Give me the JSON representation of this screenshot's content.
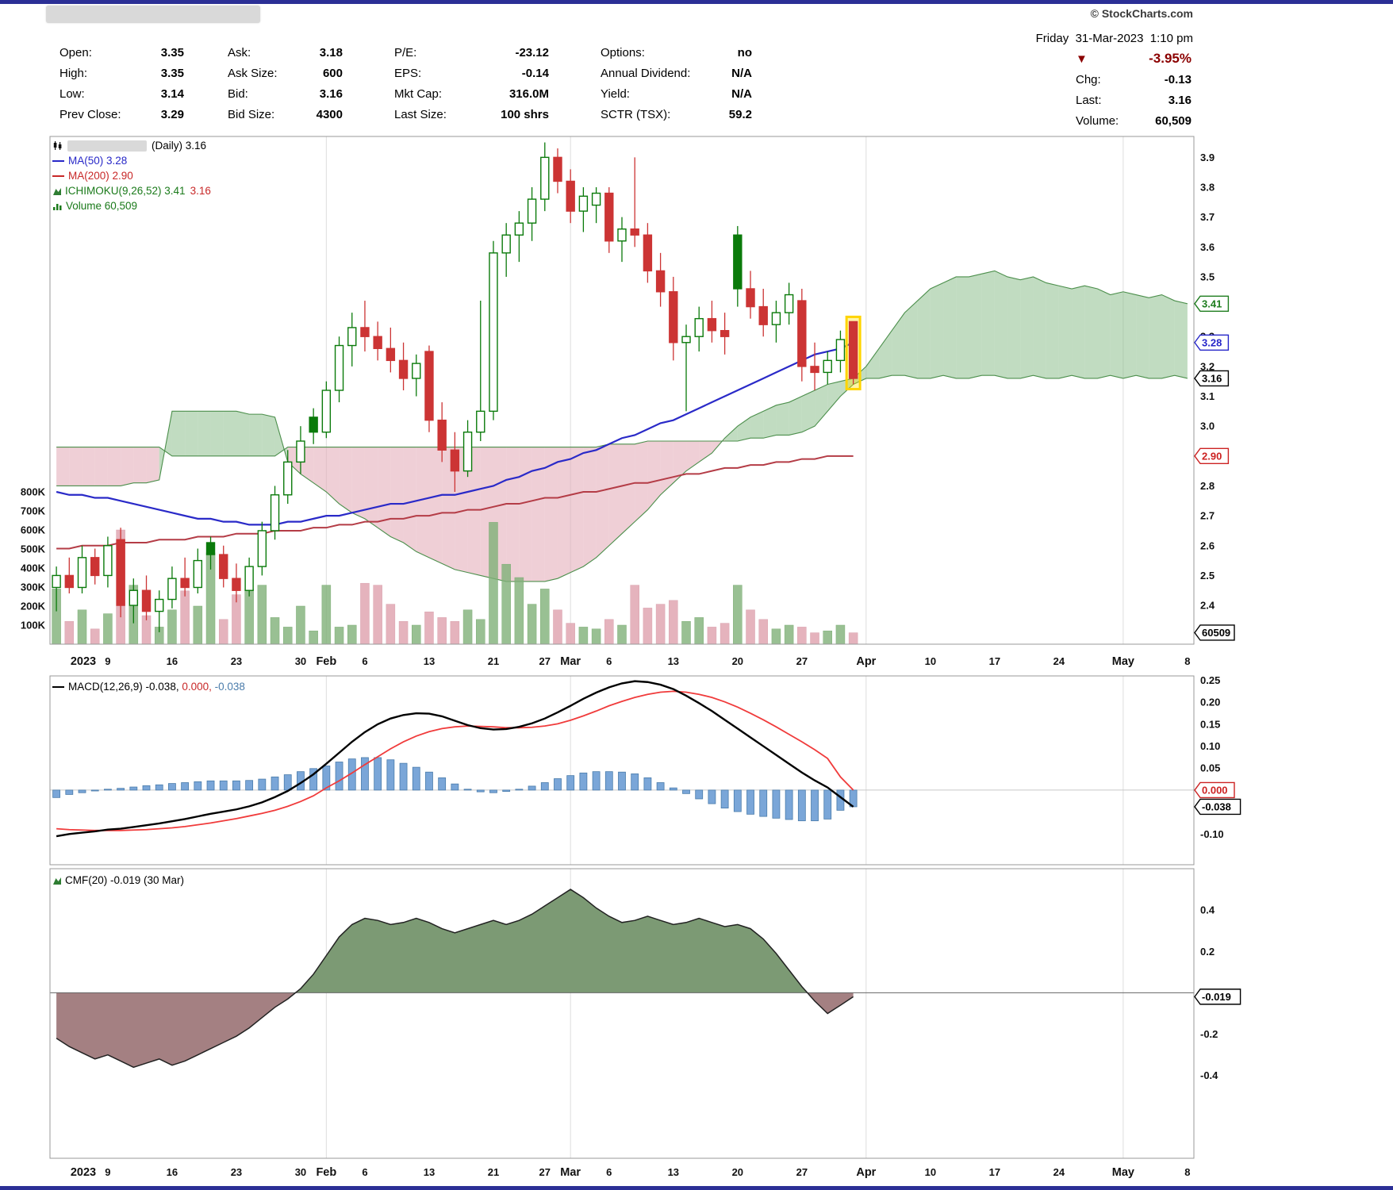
{
  "header": {
    "copyright": "© StockCharts.com",
    "datetime": "Friday  31-Mar-2023  1:10 pm",
    "columns": [
      [
        {
          "label": "Open:",
          "value": "3.35"
        },
        {
          "label": "High:",
          "value": "3.35"
        },
        {
          "label": "Low:",
          "value": "3.14"
        },
        {
          "label": "Prev Close:",
          "value": "3.29"
        }
      ],
      [
        {
          "label": "Ask:",
          "value": "3.18"
        },
        {
          "label": "Ask Size:",
          "value": "600"
        },
        {
          "label": "Bid:",
          "value": "3.16"
        },
        {
          "label": "Bid Size:",
          "value": "4300"
        }
      ],
      [
        {
          "label": "P/E:",
          "value": "-23.12"
        },
        {
          "label": "EPS:",
          "value": "-0.14"
        },
        {
          "label": "Mkt Cap:",
          "value": "316.0M"
        },
        {
          "label": "Last Size:",
          "value": "100 shrs"
        }
      ],
      [
        {
          "label": "Options:",
          "value": "no"
        },
        {
          "label": "Annual Dividend:",
          "value": "N/A"
        },
        {
          "label": "Yield:",
          "value": "N/A"
        },
        {
          "label": "SCTR (TSX):",
          "value": "59.2"
        }
      ]
    ],
    "change": {
      "arrow": "▼",
      "pct": "-3.95%",
      "rows": [
        {
          "label": "Chg:",
          "value": "-0.13"
        },
        {
          "label": "Last:",
          "value": "3.16"
        },
        {
          "label": "Volume:",
          "value": "60,509"
        }
      ]
    }
  },
  "legend": {
    "daily": "(Daily) 3.16",
    "ma50": "MA(50) 3.28",
    "ma200": "MA(200) 2.90",
    "ichimoku": "ICHIMOKU(9,26,52) 3.41",
    "ichimoku_b": "3.16",
    "volume": "Volume 60,509",
    "macd_name": "MACD(12,26,9) ",
    "macd_v1": "-0.038, ",
    "macd_v2": "0.000, ",
    "macd_v3": "-0.038",
    "cmf": "CMF(20) -0.019 (30 Mar)"
  },
  "colors": {
    "up": "#0a7a0a",
    "down": "#cc3434",
    "vol_up": "rgba(128,176,120,0.8)",
    "vol_up_edge": "#7fae77",
    "vol_down": "rgba(224,166,178,0.85)",
    "vol_down_edge": "#d9a2ae",
    "cloud_up": "rgba(132,186,132,0.5)",
    "cloud_down": "rgba(226,168,180,0.55)",
    "cloud_edge": "#4c8f4c",
    "ma50": "#2a2ac8",
    "ma200": "#b43c46",
    "signal": "#f03b3b",
    "hist_fill": "#7aa6d8",
    "hist_stroke": "#4a7cab",
    "cmf_up": "#7c9a74",
    "cmf_down": "#a48082",
    "cmf_line": "#222222",
    "accent_red": "#8b0000",
    "navy": "#2b2f96",
    "highlight": "#ffd400"
  },
  "chart_data": {
    "type": "candlestick",
    "title": "(Daily) 3.16",
    "period": "Daily, Jan 2023 - Mar 2023 with Ichimoku cloud projected to May 8",
    "n_slots": 89,
    "n_candles": 63,
    "month_gridlines": [
      21,
      40,
      63,
      83
    ],
    "x_labels": [
      {
        "t": "2023",
        "i": 0,
        "bold": true
      },
      {
        "t": "9",
        "i": 4
      },
      {
        "t": "16",
        "i": 9
      },
      {
        "t": "23",
        "i": 14
      },
      {
        "t": "30",
        "i": 19
      },
      {
        "t": "Feb",
        "i": 21,
        "bold": true
      },
      {
        "t": "6",
        "i": 24
      },
      {
        "t": "13",
        "i": 29
      },
      {
        "t": "21",
        "i": 34
      },
      {
        "t": "27",
        "i": 38
      },
      {
        "t": "Mar",
        "i": 40,
        "bold": true
      },
      {
        "t": "6",
        "i": 43
      },
      {
        "t": "13",
        "i": 48
      },
      {
        "t": "20",
        "i": 53
      },
      {
        "t": "27",
        "i": 58
      },
      {
        "t": "Apr",
        "i": 63,
        "bold": true
      },
      {
        "t": "10",
        "i": 68
      },
      {
        "t": "17",
        "i": 73
      },
      {
        "t": "24",
        "i": 78
      },
      {
        "t": "May",
        "i": 83,
        "bold": true
      },
      {
        "t": "8",
        "i": 88
      }
    ],
    "price_axis": {
      "range": [
        2.27,
        3.97
      ],
      "ticks": [
        {
          "t": "3.9",
          "v": 3.9
        },
        {
          "t": "3.8",
          "v": 3.8
        },
        {
          "t": "3.7",
          "v": 3.7
        },
        {
          "t": "3.6",
          "v": 3.6
        },
        {
          "t": "3.5",
          "v": 3.5
        },
        {
          "t": "3.3",
          "v": 3.3
        },
        {
          "t": "3.2",
          "v": 3.2
        },
        {
          "t": "3.1",
          "v": 3.1
        },
        {
          "t": "3.0",
          "v": 3.0
        },
        {
          "t": "2.8",
          "v": 2.8
        },
        {
          "t": "2.7",
          "v": 2.7
        },
        {
          "t": "2.6",
          "v": 2.6
        },
        {
          "t": "2.5",
          "v": 2.5
        },
        {
          "t": "2.4",
          "v": 2.4
        }
      ],
      "callouts": [
        {
          "t": "3.41",
          "v": 3.41,
          "color": "#1e7d1e",
          "bold": false
        },
        {
          "t": "3.28",
          "v": 3.28,
          "color": "#2626c9",
          "bold": false
        },
        {
          "t": "3.16",
          "v": 3.16,
          "color": "#000000",
          "bold": true
        },
        {
          "t": "2.90",
          "v": 2.9,
          "color": "#cc2222",
          "bold": false
        }
      ]
    },
    "volume_axis": {
      "ticks": [
        {
          "t": "800K",
          "v": 800
        },
        {
          "t": "700K",
          "v": 700
        },
        {
          "t": "600K",
          "v": 600
        },
        {
          "t": "500K",
          "v": 500
        },
        {
          "t": "400K",
          "v": 400
        },
        {
          "t": "300K",
          "v": 300
        },
        {
          "t": "200K",
          "v": 200
        },
        {
          "t": "100K",
          "v": 100
        }
      ],
      "callout": {
        "t": "60509",
        "v": 60.5,
        "color": "#000000"
      }
    },
    "candles": {
      "open": [
        2.46,
        2.5,
        2.46,
        2.56,
        2.5,
        2.62,
        2.4,
        2.45,
        2.38,
        2.42,
        2.49,
        2.46,
        2.61,
        2.57,
        2.49,
        2.45,
        2.53,
        2.65,
        2.77,
        2.88,
        3.03,
        2.98,
        3.12,
        3.27,
        3.33,
        3.3,
        3.26,
        3.22,
        3.16,
        3.25,
        3.02,
        2.92,
        2.85,
        2.98,
        3.05,
        3.58,
        3.64,
        3.68,
        3.76,
        3.9,
        3.82,
        3.72,
        3.74,
        3.78,
        3.62,
        3.66,
        3.64,
        3.52,
        3.45,
        3.28,
        3.3,
        3.36,
        3.32,
        3.64,
        3.46,
        3.4,
        3.34,
        3.38,
        3.42,
        3.2,
        3.18,
        3.22,
        3.35
      ],
      "high": [
        2.53,
        2.56,
        2.6,
        2.59,
        2.63,
        2.66,
        2.49,
        2.5,
        2.45,
        2.53,
        2.56,
        2.59,
        2.63,
        2.6,
        2.54,
        2.56,
        2.68,
        2.8,
        2.92,
        3.0,
        3.06,
        3.15,
        3.3,
        3.38,
        3.42,
        3.35,
        3.33,
        3.28,
        3.24,
        3.27,
        3.08,
        2.98,
        3.02,
        3.42,
        3.62,
        3.68,
        3.72,
        3.8,
        3.95,
        3.93,
        3.86,
        3.8,
        3.8,
        3.8,
        3.7,
        3.9,
        3.68,
        3.58,
        3.5,
        3.34,
        3.4,
        3.42,
        3.38,
        3.67,
        3.52,
        3.46,
        3.42,
        3.48,
        3.46,
        3.28,
        3.25,
        3.32,
        3.35
      ],
      "low": [
        2.38,
        2.44,
        2.44,
        2.47,
        2.46,
        2.36,
        2.34,
        2.35,
        2.31,
        2.39,
        2.43,
        2.44,
        2.52,
        2.46,
        2.41,
        2.43,
        2.5,
        2.62,
        2.74,
        2.84,
        2.94,
        2.96,
        3.08,
        3.2,
        3.25,
        3.22,
        3.18,
        3.12,
        3.1,
        2.98,
        2.88,
        2.78,
        2.83,
        2.95,
        3.02,
        3.5,
        3.55,
        3.62,
        3.72,
        3.78,
        3.68,
        3.65,
        3.68,
        3.58,
        3.55,
        3.6,
        3.48,
        3.4,
        3.22,
        3.05,
        3.25,
        3.28,
        3.24,
        3.4,
        3.36,
        3.3,
        3.28,
        3.34,
        3.15,
        3.12,
        3.14,
        3.18,
        3.14
      ],
      "close": [
        2.5,
        2.46,
        2.56,
        2.5,
        2.6,
        2.4,
        2.45,
        2.38,
        2.42,
        2.49,
        2.46,
        2.55,
        2.57,
        2.49,
        2.45,
        2.53,
        2.65,
        2.77,
        2.88,
        2.95,
        2.98,
        3.12,
        3.27,
        3.33,
        3.3,
        3.26,
        3.22,
        3.16,
        3.21,
        3.02,
        2.92,
        2.85,
        2.98,
        3.05,
        3.58,
        3.64,
        3.68,
        3.76,
        3.9,
        3.82,
        3.72,
        3.77,
        3.78,
        3.62,
        3.66,
        3.64,
        3.52,
        3.45,
        3.28,
        3.3,
        3.36,
        3.32,
        3.3,
        3.46,
        3.4,
        3.34,
        3.38,
        3.44,
        3.2,
        3.18,
        3.22,
        3.29,
        3.16
      ]
    },
    "volume_k": [
      290,
      120,
      180,
      80,
      160,
      600,
      310,
      150,
      90,
      180,
      280,
      200,
      480,
      130,
      260,
      290,
      310,
      140,
      90,
      200,
      70,
      310,
      90,
      100,
      320,
      310,
      210,
      120,
      100,
      170,
      140,
      120,
      180,
      130,
      640,
      420,
      350,
      210,
      290,
      180,
      110,
      90,
      80,
      130,
      100,
      310,
      190,
      210,
      230,
      120,
      140,
      90,
      110,
      310,
      180,
      130,
      80,
      100,
      90,
      60,
      70,
      100,
      60
    ],
    "ma50": [
      2.78,
      2.77,
      2.77,
      2.76,
      2.76,
      2.75,
      2.74,
      2.73,
      2.72,
      2.71,
      2.7,
      2.69,
      2.69,
      2.68,
      2.68,
      2.67,
      2.67,
      2.67,
      2.68,
      2.68,
      2.69,
      2.7,
      2.7,
      2.71,
      2.72,
      2.73,
      2.74,
      2.74,
      2.75,
      2.76,
      2.77,
      2.77,
      2.78,
      2.79,
      2.8,
      2.82,
      2.83,
      2.85,
      2.86,
      2.88,
      2.89,
      2.91,
      2.92,
      2.94,
      2.96,
      2.97,
      2.99,
      3.01,
      3.02,
      3.04,
      3.06,
      3.08,
      3.1,
      3.12,
      3.14,
      3.16,
      3.18,
      3.2,
      3.22,
      3.24,
      3.25,
      3.26,
      3.28
    ],
    "ma200": [
      2.59,
      2.59,
      2.6,
      2.6,
      2.6,
      2.61,
      2.61,
      2.61,
      2.62,
      2.62,
      2.62,
      2.63,
      2.63,
      2.63,
      2.64,
      2.64,
      2.64,
      2.65,
      2.65,
      2.65,
      2.66,
      2.66,
      2.67,
      2.67,
      2.68,
      2.68,
      2.69,
      2.69,
      2.7,
      2.7,
      2.71,
      2.71,
      2.72,
      2.72,
      2.73,
      2.74,
      2.74,
      2.75,
      2.76,
      2.76,
      2.77,
      2.78,
      2.78,
      2.79,
      2.8,
      2.81,
      2.81,
      2.82,
      2.83,
      2.84,
      2.84,
      2.85,
      2.86,
      2.86,
      2.87,
      2.87,
      2.88,
      2.88,
      2.89,
      2.89,
      2.9,
      2.9,
      2.9
    ],
    "ichimoku": {
      "values": {
        "span_a_last": 3.41,
        "span_b_last": 3.16
      },
      "span_a": [
        2.8,
        2.8,
        2.8,
        2.8,
        2.8,
        2.8,
        2.81,
        2.81,
        2.82,
        3.05,
        3.05,
        3.05,
        3.05,
        3.05,
        3.05,
        3.04,
        3.04,
        3.03,
        2.88,
        2.84,
        2.81,
        2.78,
        2.74,
        2.71,
        2.69,
        2.66,
        2.63,
        2.61,
        2.58,
        2.56,
        2.54,
        2.52,
        2.51,
        2.5,
        2.49,
        2.48,
        2.48,
        2.48,
        2.48,
        2.49,
        2.51,
        2.53,
        2.56,
        2.6,
        2.64,
        2.68,
        2.72,
        2.77,
        2.81,
        2.85,
        2.88,
        2.91,
        2.96,
        3.0,
        3.03,
        3.05,
        3.07,
        3.08,
        3.1,
        3.12,
        3.14,
        3.15,
        3.16,
        3.2,
        3.26,
        3.32,
        3.38,
        3.42,
        3.46,
        3.48,
        3.5,
        3.5,
        3.51,
        3.52,
        3.5,
        3.49,
        3.5,
        3.48,
        3.47,
        3.46,
        3.47,
        3.46,
        3.44,
        3.45,
        3.44,
        3.43,
        3.44,
        3.42,
        3.41
      ],
      "span_b": [
        2.93,
        2.93,
        2.93,
        2.93,
        2.93,
        2.93,
        2.93,
        2.93,
        2.93,
        2.9,
        2.9,
        2.9,
        2.9,
        2.9,
        2.9,
        2.9,
        2.9,
        2.9,
        2.93,
        2.93,
        2.93,
        2.93,
        2.93,
        2.93,
        2.93,
        2.93,
        2.93,
        2.93,
        2.93,
        2.93,
        2.93,
        2.93,
        2.93,
        2.93,
        2.93,
        2.93,
        2.93,
        2.93,
        2.93,
        2.93,
        2.93,
        2.93,
        2.93,
        2.94,
        2.94,
        2.94,
        2.95,
        2.95,
        2.95,
        2.95,
        2.95,
        2.95,
        2.95,
        2.95,
        2.96,
        2.96,
        2.97,
        2.97,
        2.98,
        3.0,
        3.05,
        3.1,
        3.14,
        3.16,
        3.16,
        3.17,
        3.17,
        3.16,
        3.16,
        3.17,
        3.16,
        3.16,
        3.17,
        3.17,
        3.16,
        3.16,
        3.17,
        3.16,
        3.16,
        3.17,
        3.16,
        3.16,
        3.17,
        3.16,
        3.17,
        3.16,
        3.16,
        3.17,
        3.16
      ]
    },
    "macd": {
      "name": "MACD(12,26,9)",
      "range": [
        -0.17,
        0.26
      ],
      "line": [
        -0.105,
        -0.1,
        -0.097,
        -0.094,
        -0.09,
        -0.088,
        -0.084,
        -0.08,
        -0.076,
        -0.071,
        -0.066,
        -0.06,
        -0.054,
        -0.049,
        -0.044,
        -0.037,
        -0.028,
        -0.016,
        -0.002,
        0.016,
        0.036,
        0.06,
        0.085,
        0.11,
        0.132,
        0.15,
        0.163,
        0.171,
        0.175,
        0.174,
        0.168,
        0.158,
        0.148,
        0.141,
        0.138,
        0.139,
        0.144,
        0.152,
        0.163,
        0.177,
        0.192,
        0.208,
        0.222,
        0.234,
        0.243,
        0.248,
        0.246,
        0.24,
        0.23,
        0.215,
        0.198,
        0.18,
        0.16,
        0.14,
        0.12,
        0.1,
        0.08,
        0.06,
        0.04,
        0.022,
        0.006,
        -0.016,
        -0.038
      ],
      "signal": [
        -0.088,
        -0.09,
        -0.091,
        -0.092,
        -0.092,
        -0.092,
        -0.091,
        -0.09,
        -0.088,
        -0.086,
        -0.083,
        -0.079,
        -0.075,
        -0.07,
        -0.065,
        -0.059,
        -0.053,
        -0.046,
        -0.037,
        -0.026,
        -0.013,
        0.005,
        0.021,
        0.039,
        0.058,
        0.076,
        0.094,
        0.11,
        0.123,
        0.133,
        0.14,
        0.144,
        0.146,
        0.145,
        0.144,
        0.142,
        0.142,
        0.143,
        0.146,
        0.151,
        0.159,
        0.169,
        0.18,
        0.192,
        0.202,
        0.211,
        0.218,
        0.223,
        0.225,
        0.223,
        0.218,
        0.211,
        0.201,
        0.189,
        0.175,
        0.16,
        0.144,
        0.127,
        0.11,
        0.092,
        0.072,
        0.03,
        0.0
      ],
      "ticks": [
        {
          "t": "0.25",
          "v": 0.25
        },
        {
          "t": "0.20",
          "v": 0.2
        },
        {
          "t": "0.15",
          "v": 0.15
        },
        {
          "t": "0.10",
          "v": 0.1
        },
        {
          "t": "0.05",
          "v": 0.05
        },
        {
          "t": "-0.10",
          "v": -0.1
        }
      ],
      "callouts": [
        {
          "t": "0.000",
          "v": 0.0,
          "color": "#cc2222",
          "bold": false
        },
        {
          "t": "-0.038",
          "v": -0.038,
          "color": "#000000",
          "bold": true
        }
      ]
    },
    "cmf": {
      "name": "CMF(20)",
      "range": [
        -0.8,
        0.6
      ],
      "values": [
        -0.22,
        -0.26,
        -0.29,
        -0.32,
        -0.3,
        -0.33,
        -0.36,
        -0.34,
        -0.32,
        -0.35,
        -0.33,
        -0.3,
        -0.27,
        -0.24,
        -0.21,
        -0.17,
        -0.12,
        -0.07,
        -0.03,
        0.02,
        0.09,
        0.18,
        0.27,
        0.33,
        0.36,
        0.35,
        0.33,
        0.34,
        0.36,
        0.34,
        0.31,
        0.29,
        0.31,
        0.33,
        0.35,
        0.33,
        0.35,
        0.38,
        0.42,
        0.46,
        0.5,
        0.46,
        0.41,
        0.37,
        0.34,
        0.35,
        0.37,
        0.35,
        0.33,
        0.34,
        0.36,
        0.34,
        0.32,
        0.33,
        0.31,
        0.26,
        0.19,
        0.11,
        0.03,
        -0.04,
        -0.1,
        -0.06,
        -0.019
      ],
      "ticks": [
        {
          "t": "0.4",
          "v": 0.4
        },
        {
          "t": "0.2",
          "v": 0.2
        },
        {
          "t": "-0.2",
          "v": -0.2
        },
        {
          "t": "-0.4",
          "v": -0.4
        }
      ],
      "callout": {
        "t": "-0.019",
        "v": -0.019,
        "color": "#000000"
      }
    }
  }
}
